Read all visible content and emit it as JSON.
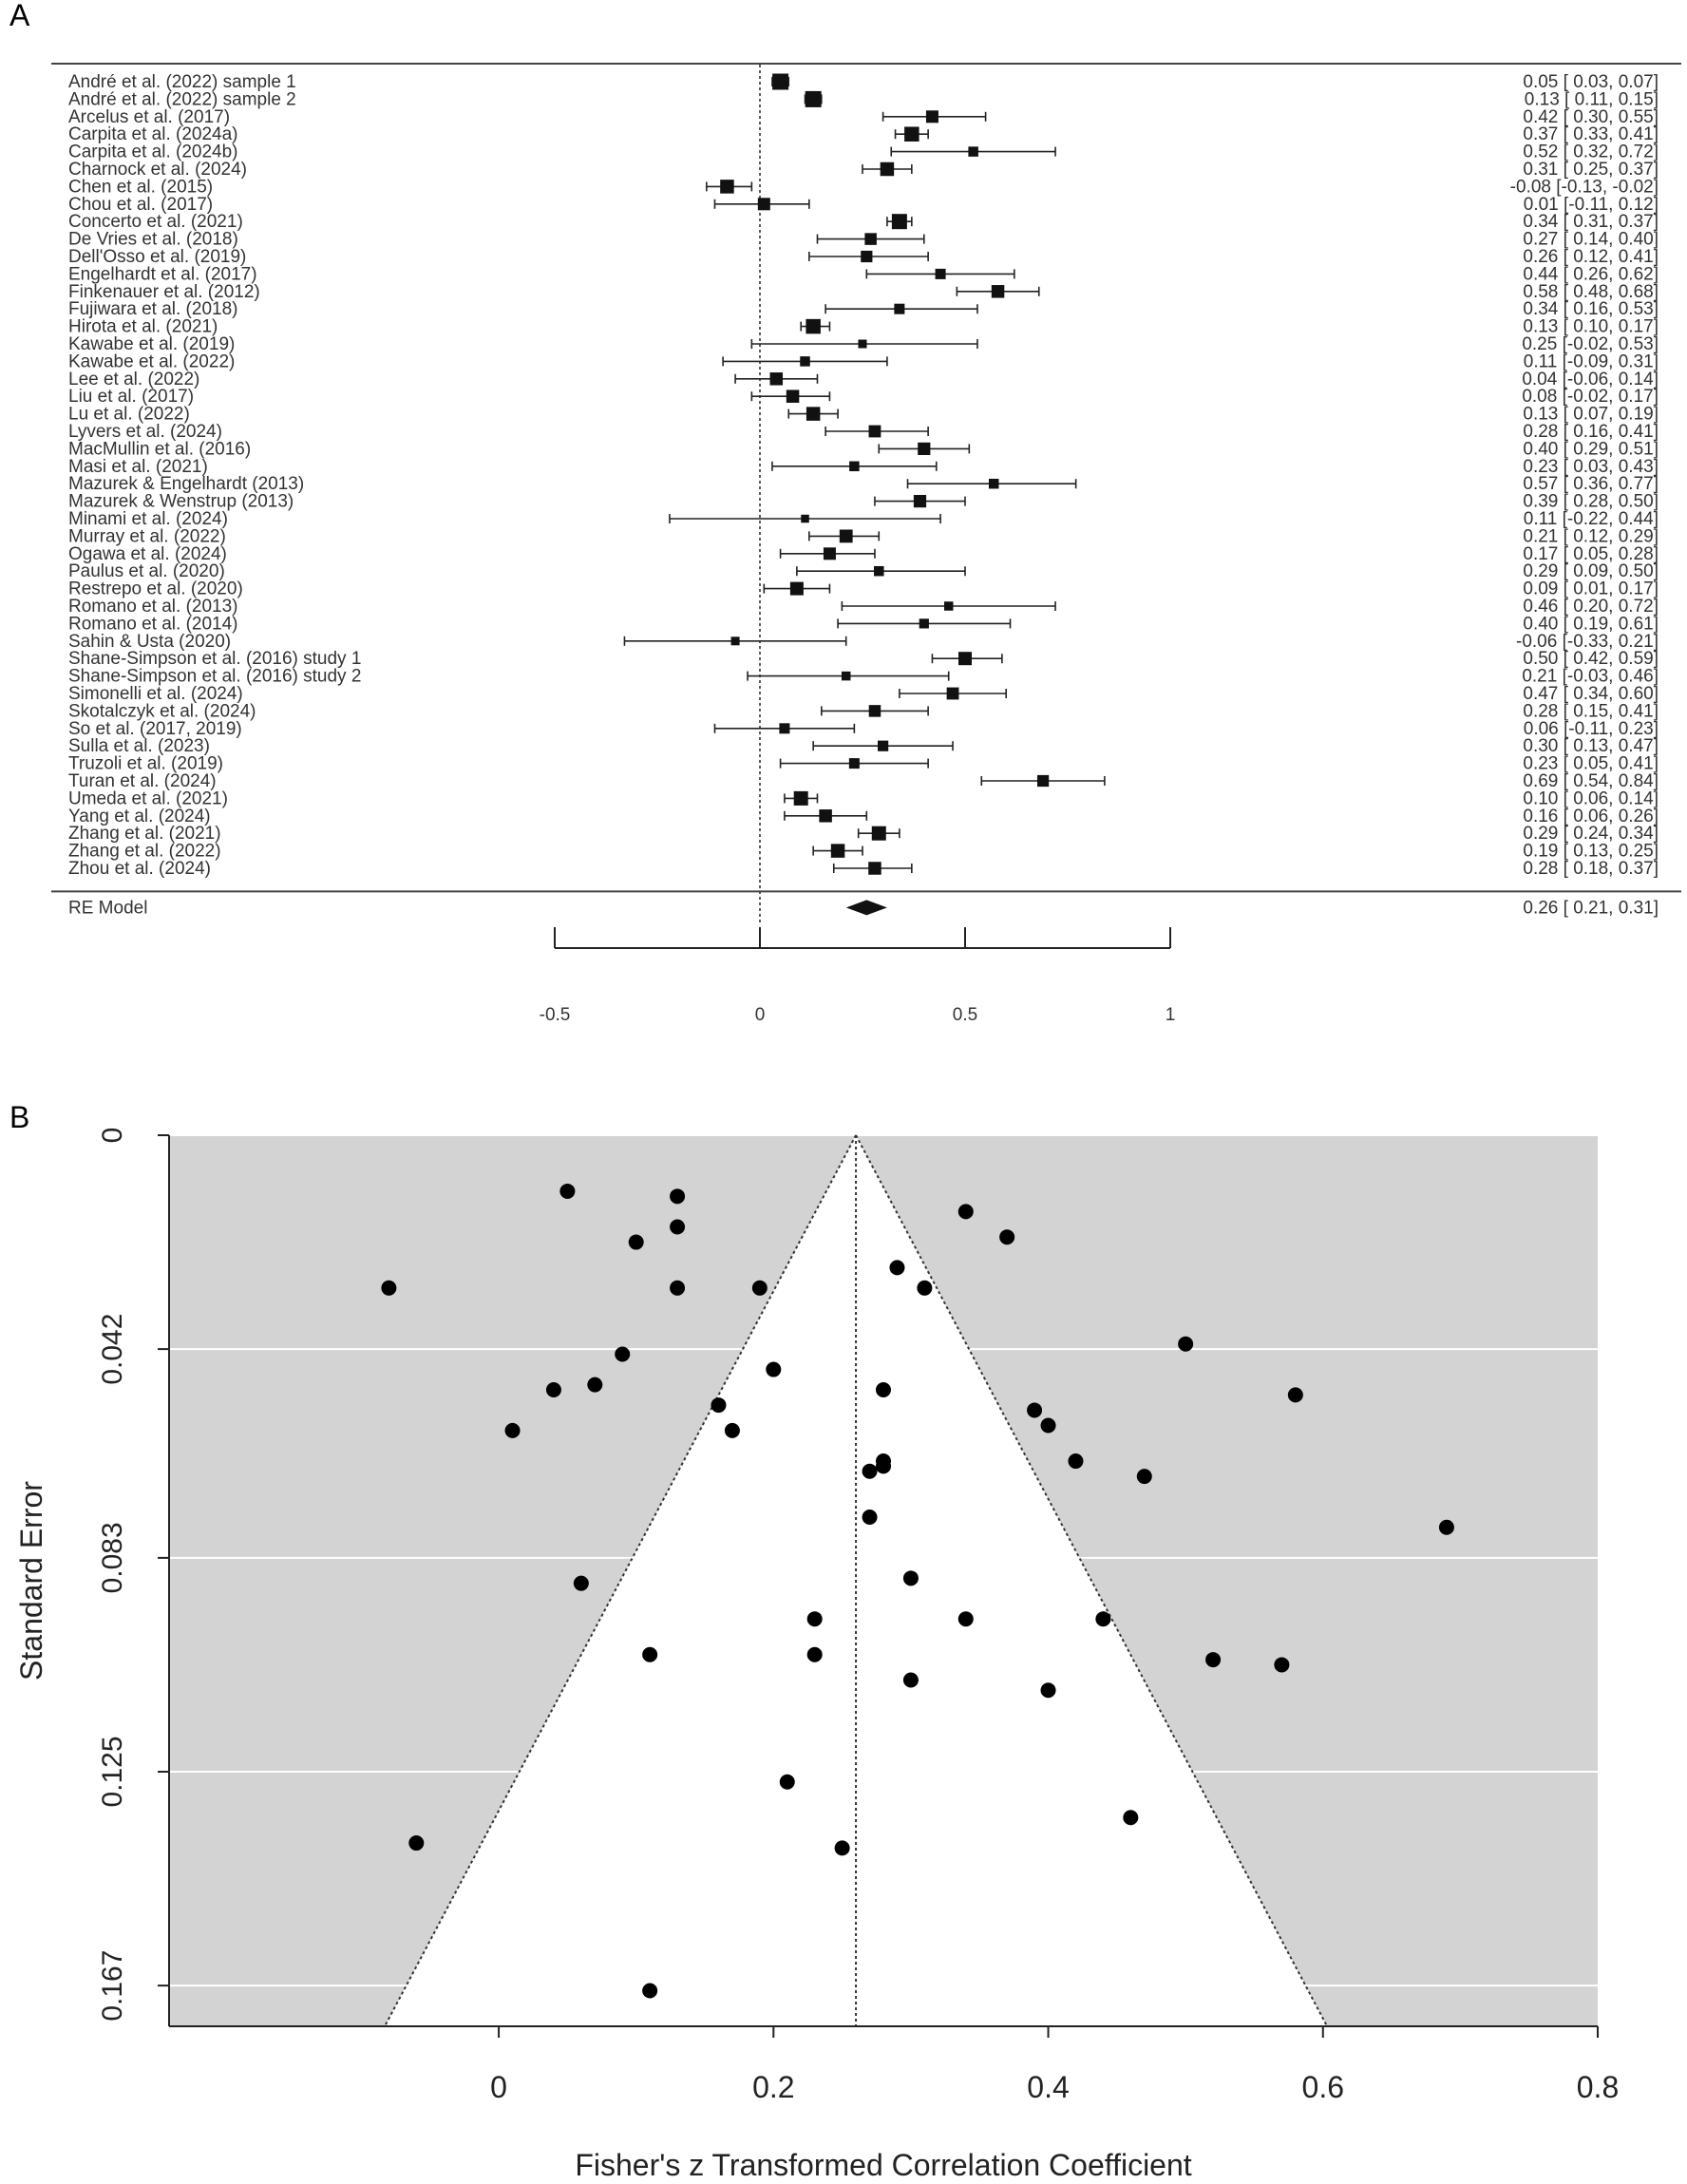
{
  "panels": {
    "a_label": "A",
    "b_label": "B"
  },
  "chart_data": [
    {
      "type": "forest",
      "studies": [
        {
          "label": "André et al. (2022) sample 1",
          "est": 0.05,
          "lo": 0.03,
          "hi": 0.07,
          "ci_text": "0.05 [ 0.03,  0.07]",
          "weight": 1.2
        },
        {
          "label": "André et al. (2022) sample 2",
          "est": 0.13,
          "lo": 0.11,
          "hi": 0.15,
          "ci_text": "0.13 [ 0.11,  0.15]",
          "weight": 1.2
        },
        {
          "label": "Arcelus et al. (2017)",
          "est": 0.42,
          "lo": 0.3,
          "hi": 0.55,
          "ci_text": "0.42 [ 0.30,  0.55]",
          "weight": 0.8
        },
        {
          "label": "Carpita et al. (2024a)",
          "est": 0.37,
          "lo": 0.33,
          "hi": 0.41,
          "ci_text": "0.37 [ 0.33,  0.41]",
          "weight": 1.05
        },
        {
          "label": "Carpita et al. (2024b)",
          "est": 0.52,
          "lo": 0.32,
          "hi": 0.72,
          "ci_text": "0.52 [ 0.32,  0.72]",
          "weight": 0.55
        },
        {
          "label": "Charnock et al. (2024)",
          "est": 0.31,
          "lo": 0.25,
          "hi": 0.37,
          "ci_text": "0.31 [ 0.25,  0.37]",
          "weight": 0.95
        },
        {
          "label": "Chen et al. (2015)",
          "est": -0.08,
          "lo": -0.13,
          "hi": -0.02,
          "ci_text": "-0.08 [-0.13, -0.02]",
          "weight": 0.95
        },
        {
          "label": "Chou et al. (2017)",
          "est": 0.01,
          "lo": -0.11,
          "hi": 0.12,
          "ci_text": "0.01 [-0.11,  0.12]",
          "weight": 0.8
        },
        {
          "label": "Concerto et al. (2021)",
          "est": 0.34,
          "lo": 0.31,
          "hi": 0.37,
          "ci_text": "0.34 [ 0.31,  0.37]",
          "weight": 1.1
        },
        {
          "label": "De Vries et al. (2018)",
          "est": 0.27,
          "lo": 0.14,
          "hi": 0.4,
          "ci_text": "0.27 [ 0.14,  0.40]",
          "weight": 0.75
        },
        {
          "label": "Dell'Osso et al. (2019)",
          "est": 0.26,
          "lo": 0.12,
          "hi": 0.41,
          "ci_text": "0.26 [ 0.12,  0.41]",
          "weight": 0.72
        },
        {
          "label": "Engelhardt et al. (2017)",
          "est": 0.44,
          "lo": 0.26,
          "hi": 0.62,
          "ci_text": "0.44 [ 0.26,  0.62]",
          "weight": 0.6
        },
        {
          "label": "Finkenauer et al. (2012)",
          "est": 0.58,
          "lo": 0.48,
          "hi": 0.68,
          "ci_text": "0.58 [ 0.48,  0.68]",
          "weight": 0.85
        },
        {
          "label": "Fujiwara et al. (2018)",
          "est": 0.34,
          "lo": 0.16,
          "hi": 0.53,
          "ci_text": "0.34 [ 0.16,  0.53]",
          "weight": 0.6
        },
        {
          "label": "Hirota et al. (2021)",
          "est": 0.13,
          "lo": 0.1,
          "hi": 0.17,
          "ci_text": "0.13 [ 0.10,  0.17]",
          "weight": 1.05
        },
        {
          "label": "Kawabe et al. (2019)",
          "est": 0.25,
          "lo": -0.02,
          "hi": 0.53,
          "ci_text": "0.25 [-0.02,  0.53]",
          "weight": 0.4
        },
        {
          "label": "Kawabe et al. (2022)",
          "est": 0.11,
          "lo": -0.09,
          "hi": 0.31,
          "ci_text": "0.11 [-0.09,  0.31]",
          "weight": 0.55
        },
        {
          "label": "Lee et al. (2022)",
          "est": 0.04,
          "lo": -0.06,
          "hi": 0.14,
          "ci_text": "0.04 [-0.06,  0.14]",
          "weight": 0.85
        },
        {
          "label": "Liu et al. (2017)",
          "est": 0.08,
          "lo": -0.02,
          "hi": 0.17,
          "ci_text": "0.08 [-0.02,  0.17]",
          "weight": 0.85
        },
        {
          "label": "Lu et al. (2022)",
          "est": 0.13,
          "lo": 0.07,
          "hi": 0.19,
          "ci_text": "0.13 [ 0.07,  0.19]",
          "weight": 0.95
        },
        {
          "label": "Lyvers et al. (2024)",
          "est": 0.28,
          "lo": 0.16,
          "hi": 0.41,
          "ci_text": "0.28 [ 0.16,  0.41]",
          "weight": 0.78
        },
        {
          "label": "MacMullin et al. (2016)",
          "est": 0.4,
          "lo": 0.29,
          "hi": 0.51,
          "ci_text": "0.40 [ 0.29,  0.51]",
          "weight": 0.82
        },
        {
          "label": "Masi et al. (2021)",
          "est": 0.23,
          "lo": 0.03,
          "hi": 0.43,
          "ci_text": "0.23 [ 0.03,  0.43]",
          "weight": 0.55
        },
        {
          "label": "Mazurek & Engelhardt (2013)",
          "est": 0.57,
          "lo": 0.36,
          "hi": 0.77,
          "ci_text": "0.57 [ 0.36,  0.77]",
          "weight": 0.55
        },
        {
          "label": "Mazurek & Wenstrup (2013)",
          "est": 0.39,
          "lo": 0.28,
          "hi": 0.5,
          "ci_text": "0.39 [ 0.28,  0.50]",
          "weight": 0.82
        },
        {
          "label": "Minami et al. (2024)",
          "est": 0.11,
          "lo": -0.22,
          "hi": 0.44,
          "ci_text": "0.11 [-0.22,  0.44]",
          "weight": 0.35
        },
        {
          "label": "Murray et al. (2022)",
          "est": 0.21,
          "lo": 0.12,
          "hi": 0.29,
          "ci_text": "0.21 [ 0.12,  0.29]",
          "weight": 0.88
        },
        {
          "label": "Ogawa et al. (2024)",
          "est": 0.17,
          "lo": 0.05,
          "hi": 0.28,
          "ci_text": "0.17 [ 0.05,  0.28]",
          "weight": 0.8
        },
        {
          "label": "Paulus et al. (2020)",
          "est": 0.29,
          "lo": 0.09,
          "hi": 0.5,
          "ci_text": "0.29 [ 0.09,  0.50]",
          "weight": 0.55
        },
        {
          "label": "Restrepo et al. (2020)",
          "est": 0.09,
          "lo": 0.01,
          "hi": 0.17,
          "ci_text": "0.09 [ 0.01,  0.17]",
          "weight": 0.9
        },
        {
          "label": "Romano et al. (2013)",
          "est": 0.46,
          "lo": 0.2,
          "hi": 0.72,
          "ci_text": "0.46 [ 0.20,  0.72]",
          "weight": 0.45
        },
        {
          "label": "Romano et al. (2014)",
          "est": 0.4,
          "lo": 0.19,
          "hi": 0.61,
          "ci_text": "0.40 [ 0.19,  0.61]",
          "weight": 0.52
        },
        {
          "label": "Sahin & Usta (2020)",
          "est": -0.06,
          "lo": -0.33,
          "hi": 0.21,
          "ci_text": "-0.06 [-0.33,  0.21]",
          "weight": 0.4
        },
        {
          "label": "Shane-Simpson et al. (2016) study 1",
          "est": 0.5,
          "lo": 0.42,
          "hi": 0.59,
          "ci_text": "0.50 [ 0.42,  0.59]",
          "weight": 0.9
        },
        {
          "label": "Shane-Simpson et al. (2016) study 2",
          "est": 0.21,
          "lo": -0.03,
          "hi": 0.46,
          "ci_text": "0.21 [-0.03,  0.46]",
          "weight": 0.45
        },
        {
          "label": "Simonelli et al. (2024)",
          "est": 0.47,
          "lo": 0.34,
          "hi": 0.6,
          "ci_text": "0.47 [ 0.34,  0.60]",
          "weight": 0.78
        },
        {
          "label": "Skotalczyk et al. (2024)",
          "est": 0.28,
          "lo": 0.15,
          "hi": 0.41,
          "ci_text": "0.28 [ 0.15,  0.41]",
          "weight": 0.75
        },
        {
          "label": "So et al. (2017, 2019)",
          "est": 0.06,
          "lo": -0.11,
          "hi": 0.23,
          "ci_text": "0.06 [-0.11,  0.23]",
          "weight": 0.6
        },
        {
          "label": "Sulla et al. (2023)",
          "est": 0.3,
          "lo": 0.13,
          "hi": 0.47,
          "ci_text": "0.30 [ 0.13,  0.47]",
          "weight": 0.62
        },
        {
          "label": "Truzoli et al. (2019)",
          "est": 0.23,
          "lo": 0.05,
          "hi": 0.41,
          "ci_text": "0.23 [ 0.05,  0.41]",
          "weight": 0.6
        },
        {
          "label": "Turan et al. (2024)",
          "est": 0.69,
          "lo": 0.54,
          "hi": 0.84,
          "ci_text": "0.69 [ 0.54,  0.84]",
          "weight": 0.72
        },
        {
          "label": "Umeda et al. (2021)",
          "est": 0.1,
          "lo": 0.06,
          "hi": 0.14,
          "ci_text": "0.10 [ 0.06,  0.14]",
          "weight": 1.0
        },
        {
          "label": "Yang et al. (2024)",
          "est": 0.16,
          "lo": 0.06,
          "hi": 0.26,
          "ci_text": "0.16 [ 0.06,  0.26]",
          "weight": 0.85
        },
        {
          "label": "Zhang et al. (2021)",
          "est": 0.29,
          "lo": 0.24,
          "hi": 0.34,
          "ci_text": "0.29 [ 0.24,  0.34]",
          "weight": 1.0
        },
        {
          "label": "Zhang et al. (2022)",
          "est": 0.19,
          "lo": 0.13,
          "hi": 0.25,
          "ci_text": "0.19 [ 0.13,  0.25]",
          "weight": 0.95
        },
        {
          "label": "Zhou et al. (2024)",
          "est": 0.28,
          "lo": 0.18,
          "hi": 0.37,
          "ci_text": "0.28 [ 0.18,  0.37]",
          "weight": 0.85
        }
      ],
      "summary": {
        "label": "RE Model",
        "est": 0.26,
        "lo": 0.21,
        "hi": 0.31,
        "ci_text": "0.26 [ 0.21,  0.31]"
      },
      "xlim": [
        -0.5,
        1
      ],
      "xticks": [
        -0.5,
        0,
        0.5,
        1
      ],
      "xtick_labels": [
        "-0.5",
        "0",
        "0.5",
        "1"
      ],
      "reference_line": 0
    },
    {
      "type": "scatter",
      "subtype": "funnel",
      "xlabel": "Fisher's z Transformed Correlation Coefficient",
      "ylabel": "Standard Error",
      "xlim": [
        -0.24,
        0.8
      ],
      "ylim": [
        0.175,
        0
      ],
      "xticks": [
        0,
        0.2,
        0.4,
        0.6,
        0.8
      ],
      "xtick_labels": [
        "0",
        "0.2",
        "0.4",
        "0.6",
        "0.8"
      ],
      "yticks": [
        0,
        0.042,
        0.083,
        0.125,
        0.167
      ],
      "ytick_labels": [
        "0",
        "0.042",
        "0.083",
        "0.125",
        "0.167"
      ],
      "center": 0.26,
      "funnel_se_max": 0.175,
      "background": "#d3d3d3",
      "funnel_fill": "#ffffff",
      "points": [
        {
          "x": 0.05,
          "y": 0.011
        },
        {
          "x": 0.13,
          "y": 0.012
        },
        {
          "x": 0.13,
          "y": 0.018
        },
        {
          "x": 0.1,
          "y": 0.021
        },
        {
          "x": -0.08,
          "y": 0.03
        },
        {
          "x": 0.13,
          "y": 0.03
        },
        {
          "x": 0.19,
          "y": 0.03
        },
        {
          "x": 0.29,
          "y": 0.026
        },
        {
          "x": 0.31,
          "y": 0.03
        },
        {
          "x": 0.34,
          "y": 0.015
        },
        {
          "x": 0.37,
          "y": 0.02
        },
        {
          "x": 0.09,
          "y": 0.043
        },
        {
          "x": 0.2,
          "y": 0.046
        },
        {
          "x": 0.04,
          "y": 0.05
        },
        {
          "x": 0.07,
          "y": 0.049
        },
        {
          "x": 0.01,
          "y": 0.058
        },
        {
          "x": 0.16,
          "y": 0.053
        },
        {
          "x": 0.17,
          "y": 0.058
        },
        {
          "x": 0.28,
          "y": 0.05
        },
        {
          "x": 0.27,
          "y": 0.066
        },
        {
          "x": 0.28,
          "y": 0.065
        },
        {
          "x": 0.28,
          "y": 0.064
        },
        {
          "x": 0.27,
          "y": 0.075
        },
        {
          "x": 0.5,
          "y": 0.041
        },
        {
          "x": 0.58,
          "y": 0.051
        },
        {
          "x": 0.39,
          "y": 0.054
        },
        {
          "x": 0.4,
          "y": 0.057
        },
        {
          "x": 0.42,
          "y": 0.064
        },
        {
          "x": 0.47,
          "y": 0.067
        },
        {
          "x": 0.69,
          "y": 0.077
        },
        {
          "x": 0.06,
          "y": 0.088
        },
        {
          "x": 0.3,
          "y": 0.087
        },
        {
          "x": 0.23,
          "y": 0.095
        },
        {
          "x": 0.34,
          "y": 0.095
        },
        {
          "x": 0.44,
          "y": 0.095
        },
        {
          "x": 0.11,
          "y": 0.102
        },
        {
          "x": 0.23,
          "y": 0.102
        },
        {
          "x": 0.52,
          "y": 0.103
        },
        {
          "x": 0.57,
          "y": 0.104
        },
        {
          "x": 0.3,
          "y": 0.107
        },
        {
          "x": 0.4,
          "y": 0.109
        },
        {
          "x": 0.21,
          "y": 0.127
        },
        {
          "x": 0.46,
          "y": 0.134
        },
        {
          "x": -0.06,
          "y": 0.139
        },
        {
          "x": 0.25,
          "y": 0.14
        },
        {
          "x": 0.11,
          "y": 0.168
        }
      ]
    }
  ]
}
